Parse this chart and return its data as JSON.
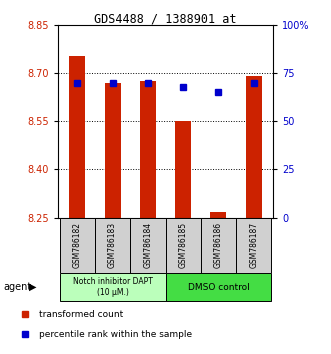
{
  "title": "GDS4488 / 1388901_at",
  "samples": [
    "GSM786182",
    "GSM786183",
    "GSM786184",
    "GSM786185",
    "GSM786186",
    "GSM786187"
  ],
  "red_values": [
    8.752,
    8.668,
    8.675,
    8.55,
    8.268,
    8.69
  ],
  "blue_percentiles": [
    70,
    70,
    70,
    68,
    65,
    70
  ],
  "y_min": 8.25,
  "y_max": 8.85,
  "y_ticks_left": [
    8.25,
    8.4,
    8.55,
    8.7,
    8.85
  ],
  "y_ticks_right": [
    0,
    25,
    50,
    75,
    100
  ],
  "y_right_labels": [
    "0",
    "25",
    "50",
    "75",
    "100%"
  ],
  "bar_color": "#cc2200",
  "dot_color": "#0000cc",
  "group1_label": "Notch inhibitor DAPT\n(10 μM.)",
  "group2_label": "DMSO control",
  "group1_color": "#bbffbb",
  "group2_color": "#44dd44",
  "agent_label": "agent",
  "legend_red": "transformed count",
  "legend_blue": "percentile rank within the sample",
  "left_color": "#cc2200",
  "right_color": "#0000cc"
}
